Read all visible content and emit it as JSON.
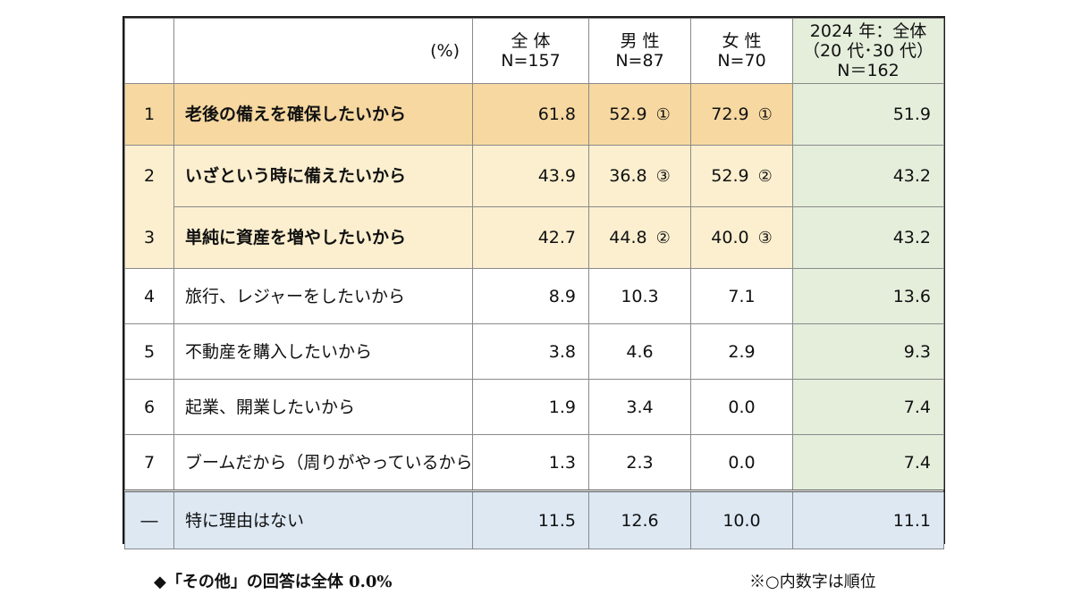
{
  "chart_data": {
    "type": "table",
    "header": {
      "unit": "(%)",
      "total": {
        "name": "全 体",
        "n": "N=157"
      },
      "male": {
        "name": "男 性",
        "n": "N=87"
      },
      "female": {
        "name": "女 性",
        "n": "N=70"
      },
      "y2024": {
        "line1": "2024 年：全体",
        "line2": "（20 代･30 代）",
        "line3": "N＝162"
      }
    },
    "rows": [
      {
        "rank": "1",
        "label": "老後の備えを確保したいから",
        "total": 61.8,
        "male": 52.9,
        "male_rank": "①",
        "female": 72.9,
        "female_rank": "①",
        "y2024": 51.9
      },
      {
        "rank": "2",
        "label": "いざという時に備えたいから",
        "total": 43.9,
        "male": 36.8,
        "male_rank": "③",
        "female": 52.9,
        "female_rank": "②",
        "y2024": 43.2
      },
      {
        "rank": "3",
        "label": "単純に資産を増やしたいから",
        "total": 42.7,
        "male": 44.8,
        "male_rank": "②",
        "female": 40.0,
        "female_rank": "③",
        "y2024": 43.2
      },
      {
        "rank": "4",
        "label": "旅行、レジャーをしたいから",
        "total": 8.9,
        "male": 10.3,
        "female": 7.1,
        "y2024": 13.6
      },
      {
        "rank": "5",
        "label": "不動産を購入したいから",
        "total": 3.8,
        "male": 4.6,
        "female": 2.9,
        "y2024": 9.3
      },
      {
        "rank": "6",
        "label": "起業、開業したいから",
        "total": 1.9,
        "male": 3.4,
        "female": 0.0,
        "y2024": 7.4
      },
      {
        "rank": "7",
        "label": "ブームだから（周りがやっているから）",
        "total": 1.3,
        "male": 2.3,
        "female": 0.0,
        "y2024": 7.4
      }
    ],
    "no_reason": {
      "rank": "―",
      "label": "特に理由はない",
      "total": 11.5,
      "male": 12.6,
      "female": 10.0,
      "y2024": 11.1
    },
    "colors": {
      "top1": "#f6d8a0",
      "top23": "#fcefcf",
      "y2024": "#e4eedb",
      "no_reason": "#dde8f3"
    }
  },
  "footnotes": {
    "left": "◆「その他」の回答は全体 0.0%",
    "right": "※○内数字は順位"
  }
}
